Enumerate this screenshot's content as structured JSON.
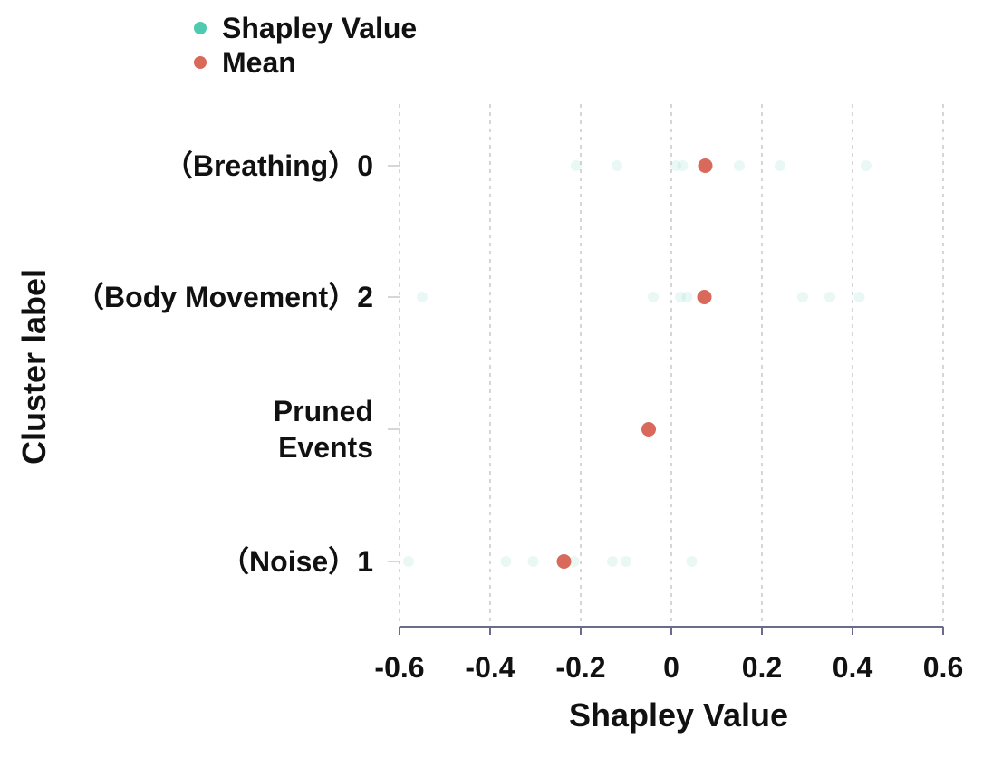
{
  "chart_data": {
    "type": "scatter",
    "xlabel": "Shapley Value",
    "ylabel": "Cluster label",
    "xlim": [
      -0.6,
      0.6
    ],
    "xticks": [
      -0.6,
      -0.4,
      -0.2,
      0,
      0.2,
      0.4,
      0.6
    ],
    "xtick_labels": [
      "-0.6",
      "-0.4",
      "-0.2",
      "0",
      "0.2",
      "0.4",
      "0.6"
    ],
    "grid": "vertical dashed",
    "legend": {
      "placement": "top-left",
      "entries": [
        {
          "name": "Shapley Value",
          "color": "#4fc9b0"
        },
        {
          "name": "Mean",
          "color": "#d9695a"
        }
      ]
    },
    "categories": [
      {
        "label_lines": [
          "（Breathing）0"
        ]
      },
      {
        "label_lines": [
          "（Body Movement）2"
        ]
      },
      {
        "label_lines": [
          "Pruned",
          "Events"
        ]
      },
      {
        "label_lines": [
          "（Noise）1"
        ]
      }
    ],
    "series": [
      {
        "name": "Shapley Value",
        "color": "#4fc9b0",
        "points": [
          [
            [
              -0.21,
              0.0
            ],
            [
              -0.12,
              0.0
            ],
            [
              0.01,
              0.0
            ],
            [
              0.025,
              0.0
            ],
            [
              0.15,
              0.0
            ],
            [
              0.24,
              0.0
            ],
            [
              0.43,
              0.0
            ]
          ],
          [
            [
              -0.55,
              0.0
            ],
            [
              -0.04,
              0.0
            ],
            [
              0.02,
              0.0
            ],
            [
              0.035,
              0.0
            ],
            [
              0.29,
              0.0
            ],
            [
              0.35,
              0.0
            ],
            [
              0.415,
              0.0
            ]
          ],
          [],
          [
            [
              -0.58,
              0.0
            ],
            [
              -0.365,
              0.0
            ],
            [
              -0.305,
              0.0
            ],
            [
              -0.215,
              0.0
            ],
            [
              -0.13,
              0.0
            ],
            [
              -0.1,
              0.0
            ],
            [
              0.045,
              0.0
            ]
          ]
        ]
      },
      {
        "name": "Mean",
        "color": "#d9695a",
        "values": [
          0.075,
          0.073,
          -0.05,
          -0.237
        ]
      }
    ]
  }
}
